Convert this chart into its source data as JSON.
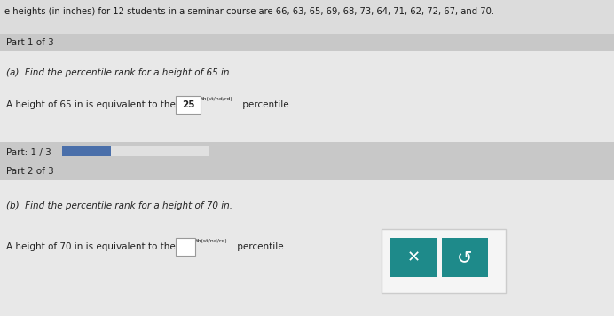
{
  "title_text": "e heights (in inches) for 12 students in a seminar course are 66, 63, 65, 69, 68, 73, 64, 71, 62, 72, 67, and 70.",
  "part1_header": "Part 1 of 3",
  "part1_question": "(a)  Find the percentile rank for a height of 65 in.",
  "part1_answer_prefix": "A height of 65 in is equivalent to the ",
  "part1_answer_value": "25",
  "part1_superscript": "th(st/nd/rd)",
  "part1_answer_suffix": " percentile.",
  "progress_label": "Part: 1 / 3",
  "part2_header": "Part 2 of 3",
  "part2_question": "(b)  Find the percentile rank for a height of 70 in.",
  "part2_answer_prefix": "A height of 70 in is equivalent to the ",
  "part2_superscript": "th(st/nd/rd)",
  "part2_answer_suffix": " percentile.",
  "bg_top": "#dcdcdc",
  "bg_section": "#e8e8e8",
  "bg_header": "#c8c8c8",
  "bg_white": "#f2f2f2",
  "bg_progress": "#c8c8c8",
  "progress_fill": "#4a6faa",
  "progress_empty": "#e0e0e0",
  "button_teal": "#1e8a8a",
  "button_border": "#cccccc",
  "text_dark": "#1a1a1a",
  "text_normal": "#222222",
  "box_border": "#999999"
}
